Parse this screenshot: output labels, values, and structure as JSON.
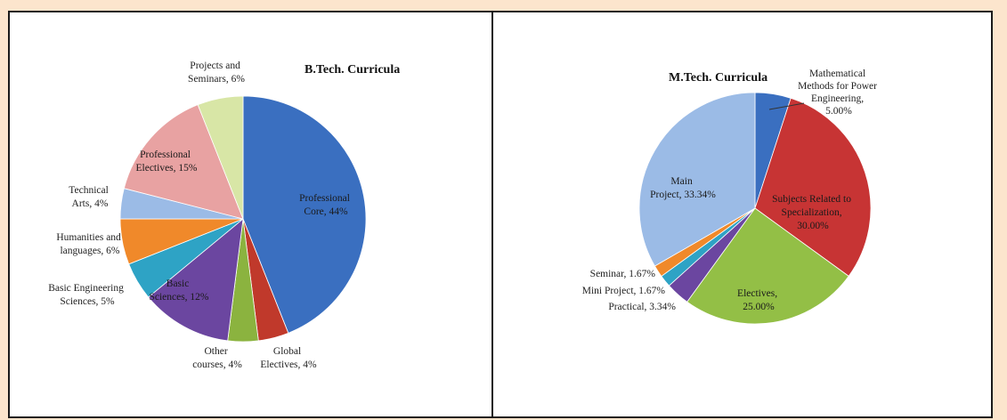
{
  "chart_data": [
    {
      "type": "pie",
      "title": "B.Tech. Curricula",
      "slices": [
        {
          "label": "Professional Core, 44%",
          "value": 44,
          "color": "#3a6fc0"
        },
        {
          "label": "Global Electives, 4%",
          "value": 4,
          "color": "#c0392b"
        },
        {
          "label": "Other courses, 4%",
          "value": 4,
          "color": "#8bb33f"
        },
        {
          "label": "Basic Sciences, 12%",
          "value": 12,
          "color": "#6b46a0"
        },
        {
          "label": "Basic Engineering Sciences, 5%",
          "value": 5,
          "color": "#2ea3c5"
        },
        {
          "label": "Humanities and languages, 6%",
          "value": 6,
          "color": "#f0892a"
        },
        {
          "label": "Technical Arts, 4%",
          "value": 4,
          "color": "#9bbbe6"
        },
        {
          "label": "Professional Electives, 15%",
          "value": 15,
          "color": "#e8a2a2"
        },
        {
          "label": "Projects and Seminars, 6%",
          "value": 6,
          "color": "#d8e6a6"
        }
      ]
    },
    {
      "type": "pie",
      "title": "M.Tech. Curricula",
      "slices": [
        {
          "label": "Mathematical Methods for Power Engineering, 5.00%",
          "value": 5.0,
          "color": "#3a6fc0"
        },
        {
          "label": "Subjects Related to Specialization, 30.00%",
          "value": 30.0,
          "color": "#c73434"
        },
        {
          "label": "Electives, 25.00%",
          "value": 25.0,
          "color": "#93bf46"
        },
        {
          "label": "Practical, 3.34%",
          "value": 3.34,
          "color": "#6b46a0"
        },
        {
          "label": "Mini Project, 1.67%",
          "value": 1.67,
          "color": "#2ea3c5"
        },
        {
          "label": "Seminar, 1.67%",
          "value": 1.67,
          "color": "#f0892a"
        },
        {
          "label": "Main Project, 33.34%",
          "value": 33.34,
          "color": "#9bbbe6"
        }
      ]
    }
  ],
  "btech_labels": {
    "professional_core": [
      "Professional",
      "Core, 44%"
    ],
    "global_electives": [
      "Global",
      "Electives, 4%"
    ],
    "other_courses": [
      "Other",
      "courses, 4%"
    ],
    "basic_sciences": [
      "Basic",
      "Sciences, 12%"
    ],
    "basic_engineering": [
      "Basic Engineering",
      "Sciences, 5%"
    ],
    "humanities": [
      "Humanities and",
      "languages, 6%"
    ],
    "technical_arts": [
      "Technical",
      "Arts, 4%"
    ],
    "professional_electives": [
      "Professional",
      "Electives, 15%"
    ],
    "projects_seminars": [
      "Projects and",
      "Seminars, 6%"
    ]
  },
  "mtech_labels": {
    "math_methods": [
      "Mathematical",
      "Methods for Power",
      "Engineering,",
      "5.00%"
    ],
    "subjects_related": [
      "Subjects Related to",
      "Specialization,",
      "30.00%"
    ],
    "electives": [
      "Electives,",
      "25.00%"
    ],
    "practical": [
      "Practical, 3.34%"
    ],
    "mini_project": [
      "Mini Project, 1.67%"
    ],
    "seminar": [
      "Seminar, 1.67%"
    ],
    "main_project": [
      "Main",
      "Project, 33.34%"
    ]
  }
}
